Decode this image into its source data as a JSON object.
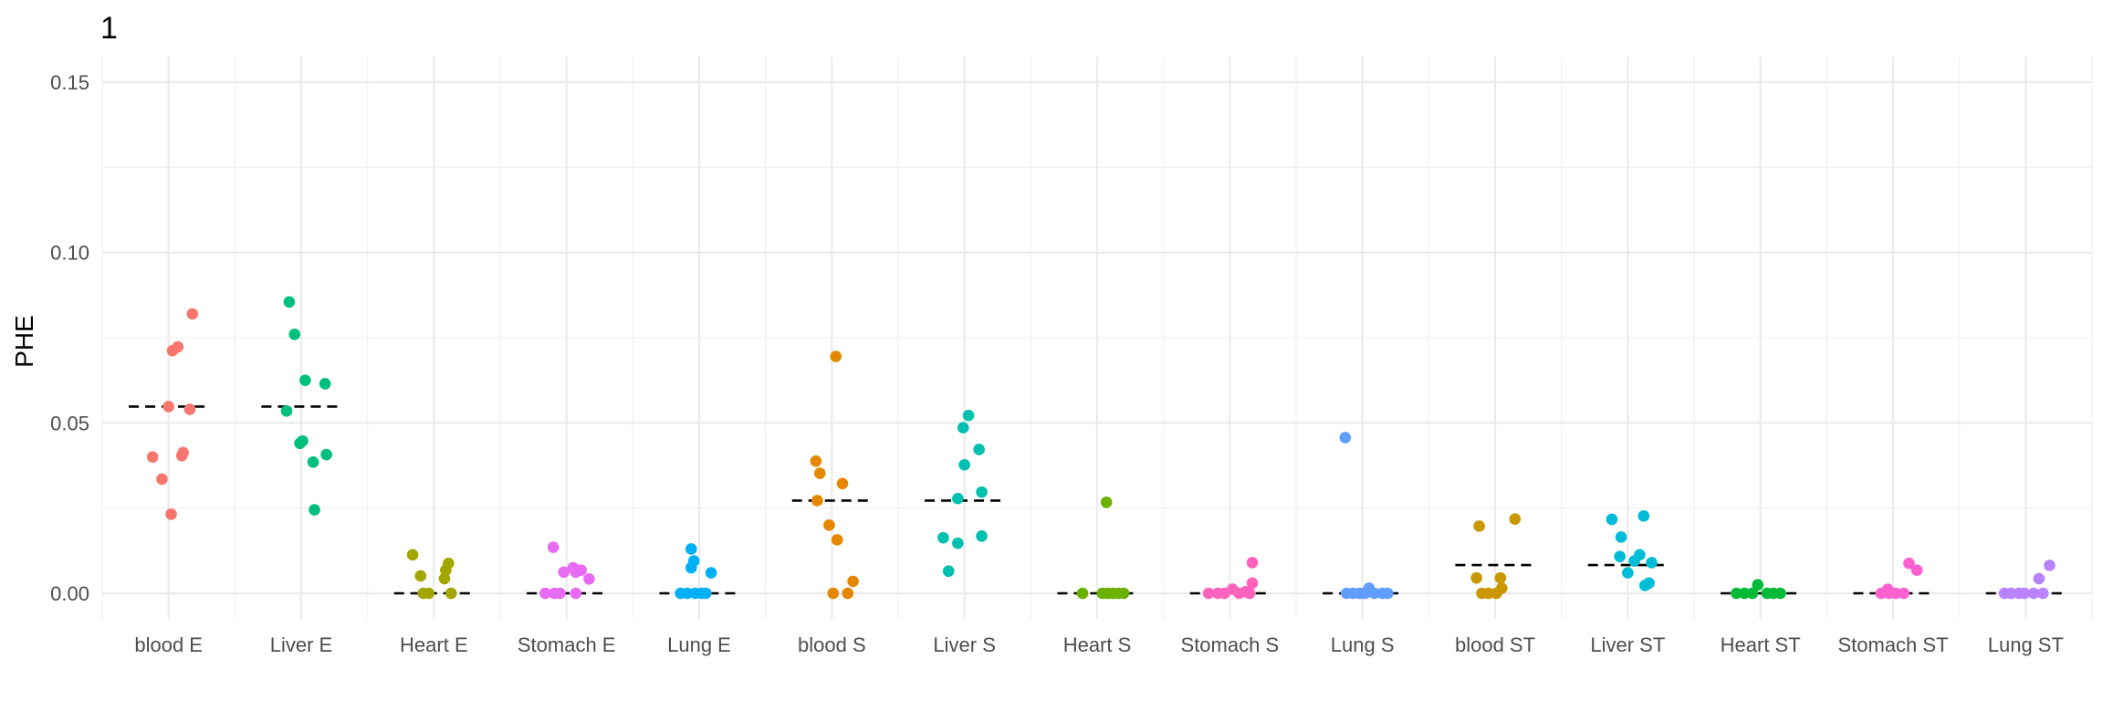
{
  "panel_tag": "1",
  "chart_data": {
    "type": "scatter",
    "title": "",
    "xlabel": "",
    "ylabel": "PHE",
    "ylim": [
      -0.0075,
      0.1575
    ],
    "yticks": [
      0.0,
      0.05,
      0.1,
      0.15
    ],
    "ytick_labels": [
      "0.00",
      "0.05",
      "0.10",
      "0.15"
    ],
    "grid": true,
    "legend": "none",
    "categories": [
      "blood E",
      "Liver E",
      "Heart E",
      "Stomach E",
      "Lung E",
      "blood S",
      "Liver S",
      "Heart S",
      "Stomach S",
      "Lung S",
      "blood ST",
      "Liver ST",
      "Heart ST",
      "Stomach ST",
      "Lung ST"
    ],
    "colors": [
      "#F8766D",
      "#00BF7D",
      "#A3A500",
      "#E76BF3",
      "#00B0F6",
      "#E58700",
      "#00C0AF",
      "#6BB100",
      "#FF62BC",
      "#619CFF",
      "#C99800",
      "#00BCD8",
      "#00BA38",
      "#FD61D1",
      "#B983FF"
    ],
    "series": [
      {
        "category": "blood E",
        "median": 0.0548,
        "points": [
          {
            "x": 0.18,
            "y": 0.082
          },
          {
            "x": 0.07,
            "y": 0.0723
          },
          {
            "x": 0.03,
            "y": 0.0712
          },
          {
            "x": 0.0,
            "y": 0.0548
          },
          {
            "x": 0.16,
            "y": 0.054
          },
          {
            "x": 0.11,
            "y": 0.0413
          },
          {
            "x": 0.1,
            "y": 0.0404
          },
          {
            "x": -0.12,
            "y": 0.04
          },
          {
            "x": -0.05,
            "y": 0.0335
          },
          {
            "x": 0.02,
            "y": 0.0232
          }
        ]
      },
      {
        "category": "Liver E",
        "median": 0.0548,
        "points": [
          {
            "x": -0.09,
            "y": 0.0855
          },
          {
            "x": -0.05,
            "y": 0.076
          },
          {
            "x": 0.03,
            "y": 0.0625
          },
          {
            "x": 0.18,
            "y": 0.0615
          },
          {
            "x": -0.11,
            "y": 0.0535
          },
          {
            "x": 0.01,
            "y": 0.0447
          },
          {
            "x": -0.01,
            "y": 0.044
          },
          {
            "x": 0.19,
            "y": 0.0407
          },
          {
            "x": 0.09,
            "y": 0.0385
          },
          {
            "x": 0.1,
            "y": 0.0245
          }
        ]
      },
      {
        "category": "Heart E",
        "median": 0.0,
        "points": [
          {
            "x": -0.16,
            "y": 0.0113
          },
          {
            "x": 0.11,
            "y": 0.0088
          },
          {
            "x": 0.09,
            "y": 0.0068
          },
          {
            "x": -0.1,
            "y": 0.0051
          },
          {
            "x": 0.08,
            "y": 0.0043
          },
          {
            "x": -0.08,
            "y": 0.0
          },
          {
            "x": -0.04,
            "y": 0.0
          },
          {
            "x": 0.13,
            "y": 0.0
          }
        ]
      },
      {
        "category": "Stomach E",
        "median": 0.0,
        "points": [
          {
            "x": -0.1,
            "y": 0.0135
          },
          {
            "x": 0.05,
            "y": 0.0075
          },
          {
            "x": 0.11,
            "y": 0.0068
          },
          {
            "x": 0.07,
            "y": 0.0062
          },
          {
            "x": -0.02,
            "y": 0.0062
          },
          {
            "x": 0.17,
            "y": 0.0042
          },
          {
            "x": -0.16,
            "y": 0.0
          },
          {
            "x": -0.09,
            "y": 0.0
          },
          {
            "x": -0.05,
            "y": 0.0
          },
          {
            "x": 0.07,
            "y": 0.0
          }
        ]
      },
      {
        "category": "Lung E",
        "median": 0.0,
        "points": [
          {
            "x": -0.06,
            "y": 0.013
          },
          {
            "x": -0.04,
            "y": 0.0095
          },
          {
            "x": -0.06,
            "y": 0.0075
          },
          {
            "x": 0.09,
            "y": 0.006
          },
          {
            "x": -0.14,
            "y": 0.0
          },
          {
            "x": -0.09,
            "y": 0.0
          },
          {
            "x": -0.03,
            "y": 0.0
          },
          {
            "x": 0.02,
            "y": 0.0
          },
          {
            "x": 0.05,
            "y": 0.0
          }
        ]
      },
      {
        "category": "blood S",
        "median": 0.0272,
        "points": [
          {
            "x": 0.03,
            "y": 0.0695
          },
          {
            "x": -0.12,
            "y": 0.0388
          },
          {
            "x": -0.09,
            "y": 0.0352
          },
          {
            "x": 0.08,
            "y": 0.0322
          },
          {
            "x": -0.11,
            "y": 0.0272
          },
          {
            "x": -0.02,
            "y": 0.02
          },
          {
            "x": 0.04,
            "y": 0.0157
          },
          {
            "x": 0.16,
            "y": 0.0035
          },
          {
            "x": 0.01,
            "y": 0.0
          },
          {
            "x": 0.12,
            "y": 0.0
          }
        ]
      },
      {
        "category": "Liver S",
        "median": 0.0272,
        "points": [
          {
            "x": 0.03,
            "y": 0.0522
          },
          {
            "x": -0.01,
            "y": 0.0486
          },
          {
            "x": 0.11,
            "y": 0.0422
          },
          {
            "x": 0.0,
            "y": 0.0377
          },
          {
            "x": 0.13,
            "y": 0.0297
          },
          {
            "x": -0.05,
            "y": 0.0278
          },
          {
            "x": 0.13,
            "y": 0.0168
          },
          {
            "x": -0.16,
            "y": 0.0163
          },
          {
            "x": -0.05,
            "y": 0.0147
          },
          {
            "x": -0.12,
            "y": 0.0065
          }
        ]
      },
      {
        "category": "Heart S",
        "median": 0.0,
        "points": [
          {
            "x": 0.07,
            "y": 0.0267
          },
          {
            "x": -0.11,
            "y": 0.0
          },
          {
            "x": 0.04,
            "y": 0.0
          },
          {
            "x": 0.08,
            "y": 0.0
          },
          {
            "x": 0.12,
            "y": 0.0
          },
          {
            "x": 0.16,
            "y": 0.0
          },
          {
            "x": 0.2,
            "y": 0.0
          }
        ]
      },
      {
        "category": "Stomach S",
        "median": 0.0,
        "points": [
          {
            "x": 0.17,
            "y": 0.009
          },
          {
            "x": 0.17,
            "y": 0.003
          },
          {
            "x": 0.02,
            "y": 0.0012
          },
          {
            "x": 0.12,
            "y": 0.0005
          },
          {
            "x": -0.16,
            "y": 0.0
          },
          {
            "x": -0.09,
            "y": 0.0
          },
          {
            "x": -0.04,
            "y": 0.0
          },
          {
            "x": 0.07,
            "y": 0.0
          },
          {
            "x": 0.15,
            "y": 0.0
          }
        ]
      },
      {
        "category": "Lung S",
        "median": 0.0,
        "points": [
          {
            "x": -0.13,
            "y": 0.0457
          },
          {
            "x": 0.05,
            "y": 0.0015
          },
          {
            "x": -0.12,
            "y": 0.0
          },
          {
            "x": -0.07,
            "y": 0.0
          },
          {
            "x": -0.02,
            "y": 0.0
          },
          {
            "x": 0.02,
            "y": 0.0
          },
          {
            "x": 0.09,
            "y": 0.0
          },
          {
            "x": 0.15,
            "y": 0.0
          },
          {
            "x": 0.19,
            "y": 0.0
          }
        ]
      },
      {
        "category": "blood ST",
        "median": 0.0083,
        "points": [
          {
            "x": 0.15,
            "y": 0.0218
          },
          {
            "x": -0.12,
            "y": 0.0197
          },
          {
            "x": -0.14,
            "y": 0.0045
          },
          {
            "x": 0.04,
            "y": 0.0045
          },
          {
            "x": 0.05,
            "y": 0.0015
          },
          {
            "x": -0.1,
            "y": 0.0
          },
          {
            "x": -0.05,
            "y": 0.0
          },
          {
            "x": 0.01,
            "y": 0.0
          }
        ]
      },
      {
        "category": "Liver ST",
        "median": 0.0083,
        "points": [
          {
            "x": 0.12,
            "y": 0.0227
          },
          {
            "x": -0.12,
            "y": 0.0217
          },
          {
            "x": -0.05,
            "y": 0.0165
          },
          {
            "x": 0.09,
            "y": 0.0113
          },
          {
            "x": -0.06,
            "y": 0.0108
          },
          {
            "x": 0.05,
            "y": 0.0095
          },
          {
            "x": 0.18,
            "y": 0.009
          },
          {
            "x": 0.0,
            "y": 0.006
          },
          {
            "x": 0.16,
            "y": 0.003
          },
          {
            "x": 0.13,
            "y": 0.0023
          }
        ]
      },
      {
        "category": "Heart ST",
        "median": 0.0,
        "points": [
          {
            "x": -0.02,
            "y": 0.0025
          },
          {
            "x": -0.18,
            "y": 0.0
          },
          {
            "x": -0.12,
            "y": 0.0
          },
          {
            "x": -0.06,
            "y": 0.0
          },
          {
            "x": 0.05,
            "y": 0.0
          },
          {
            "x": 0.1,
            "y": 0.0
          },
          {
            "x": 0.15,
            "y": 0.0
          }
        ]
      },
      {
        "category": "Stomach ST",
        "median": 0.0,
        "points": [
          {
            "x": 0.12,
            "y": 0.0088
          },
          {
            "x": 0.18,
            "y": 0.0068
          },
          {
            "x": -0.04,
            "y": 0.0012
          },
          {
            "x": -0.09,
            "y": 0.0
          },
          {
            "x": -0.03,
            "y": 0.0
          },
          {
            "x": 0.02,
            "y": 0.0
          },
          {
            "x": 0.08,
            "y": 0.0
          }
        ]
      },
      {
        "category": "Lung ST",
        "median": 0.0,
        "points": [
          {
            "x": 0.18,
            "y": 0.0082
          },
          {
            "x": 0.1,
            "y": 0.0043
          },
          {
            "x": -0.16,
            "y": 0.0
          },
          {
            "x": -0.11,
            "y": 0.0
          },
          {
            "x": -0.05,
            "y": 0.0
          },
          {
            "x": -0.01,
            "y": 0.0
          },
          {
            "x": 0.06,
            "y": 0.0
          },
          {
            "x": 0.13,
            "y": 0.0
          }
        ]
      }
    ]
  }
}
